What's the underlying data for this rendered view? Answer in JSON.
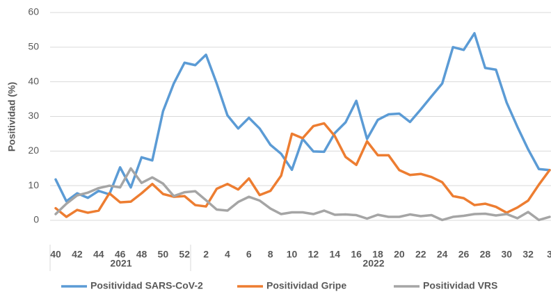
{
  "chart_data": {
    "type": "line",
    "y_label": "Positividad (%)",
    "categories": [
      "40",
      null,
      "42",
      null,
      "44",
      null,
      "46",
      null,
      "48",
      null,
      "50",
      null,
      "52",
      null,
      "2",
      null,
      "4",
      null,
      "6",
      null,
      "8",
      null,
      "10",
      null,
      "12",
      null,
      "14",
      null,
      "16",
      null,
      "18",
      null,
      "20",
      null,
      "22",
      null,
      "24",
      null,
      "26",
      null,
      "28",
      null,
      "30",
      null,
      "32",
      null,
      "3"
    ],
    "x_groups": [
      "2021",
      "2022"
    ],
    "series": [
      {
        "name": "Positividad SARS-CoV-2",
        "color": "#5b9bd5",
        "values": [
          11.8,
          5.5,
          7.8,
          6.5,
          8.5,
          7.5,
          15.3,
          9.5,
          18.2,
          17.3,
          31.5,
          39.5,
          45.5,
          44.8,
          47.8,
          39.5,
          30.3,
          26.5,
          29.6,
          26.5,
          21.8,
          19.2,
          14.6,
          23.5,
          19.9,
          19.8,
          25.2,
          28.3,
          34.5,
          23.5,
          29,
          30.6,
          30.8,
          28.4,
          32,
          35.8,
          39.5,
          50,
          49.2,
          54,
          44,
          43.5,
          34,
          27,
          20.5,
          14.8,
          14.5
        ]
      },
      {
        "name": "Positividad Gripe",
        "color": "#ed7d31",
        "values": [
          3.5,
          1,
          3,
          2.2,
          2.8,
          7.8,
          5.2,
          5.4,
          7.8,
          10.5,
          7.6,
          6.8,
          7,
          4.4,
          4,
          9.1,
          10.5,
          8.9,
          12.1,
          7.3,
          8.5,
          12.9,
          25,
          23.7,
          27.2,
          28,
          24.3,
          18.3,
          16,
          22.8,
          18.8,
          18.8,
          14.5,
          13.1,
          13.4,
          12.5,
          11,
          7,
          6.4,
          4.4,
          4.8,
          3.9,
          2.2,
          3.7,
          5.7,
          10.3,
          14.5
        ]
      },
      {
        "name": "Positividad VRS",
        "color": "#a5a5a5",
        "values": [
          1.8,
          4.8,
          7.2,
          8,
          9.3,
          10,
          9.5,
          15,
          10.8,
          12.4,
          10.6,
          7,
          8.1,
          8.4,
          5.8,
          3.1,
          2.8,
          5.3,
          6.8,
          5.7,
          3.4,
          1.8,
          2.3,
          2.3,
          1.8,
          2.8,
          1.6,
          1.7,
          1.5,
          0.5,
          1.6,
          1,
          1,
          1.7,
          1.2,
          1.5,
          0.1,
          1,
          1.3,
          1.8,
          1.9,
          1.4,
          1.8,
          0.6,
          2.4,
          0.1,
          1
        ]
      }
    ],
    "ylim": [
      0,
      60
    ],
    "yticks": [
      0,
      10,
      20,
      30,
      40,
      50,
      60
    ],
    "grid": true
  }
}
